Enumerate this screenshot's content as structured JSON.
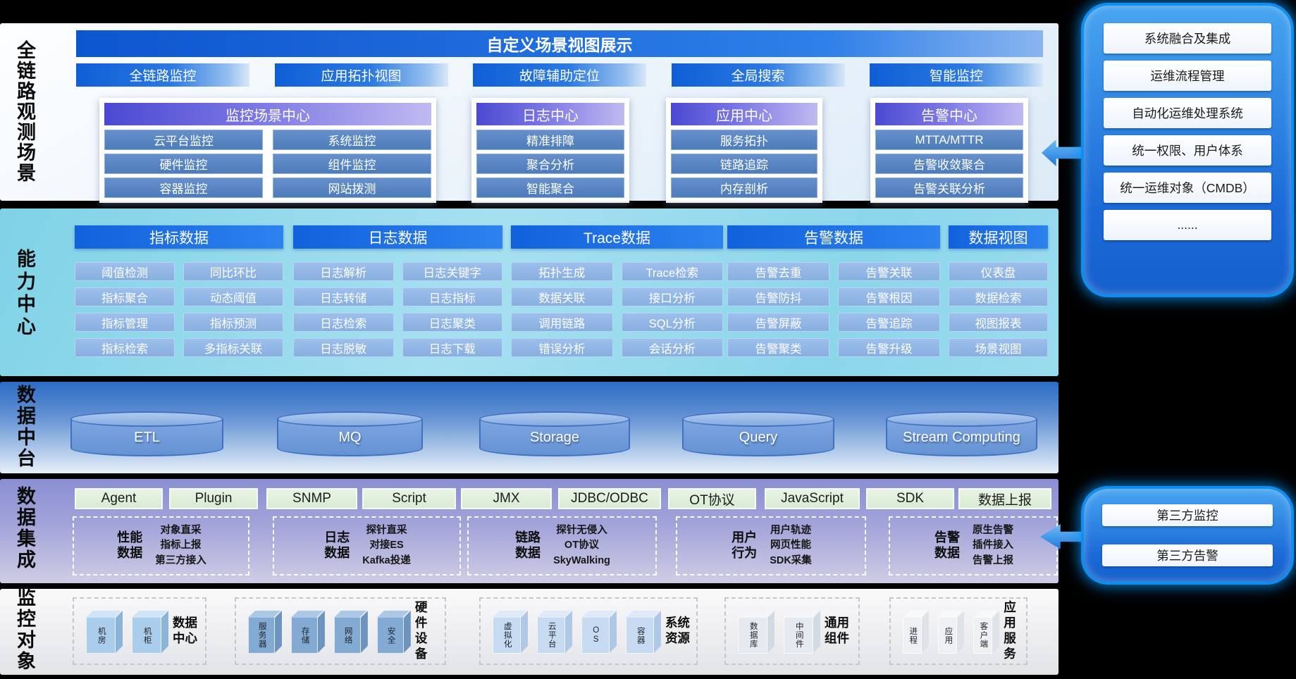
{
  "colors": {
    "canvas_bg": "#000000",
    "banner_blue": "#0d5ccf",
    "tab_blue": "#1668e0",
    "group_header_purple": "#5a55dd",
    "scene_item_blue": "#5582bf",
    "capability_header_blue": "#1a6ce2",
    "capability_item_blue": "#93b7e6",
    "cylinder_blue": "#6d9ad8",
    "chip_green": "#ddeed8",
    "panel_blue": "#2a85e8",
    "arrow_blue": "#2f8fe8"
  },
  "scene_section": {
    "side_label": "全链路观测场景",
    "banner": "自定义场景视图展示",
    "tabs": [
      "全链路监控",
      "应用拓扑视图",
      "故障辅助定位",
      "全局搜索",
      "智能监控"
    ],
    "groups": [
      {
        "title": "监控场景中心",
        "columns": [
          [
            "云平台监控",
            "硬件监控",
            "容器监控"
          ],
          [
            "系统监控",
            "组件监控",
            "网站拨测"
          ]
        ]
      },
      {
        "title": "日志中心",
        "columns": [
          [
            "精准排障",
            "聚合分析",
            "智能聚合"
          ]
        ]
      },
      {
        "title": "应用中心",
        "columns": [
          [
            "服务拓扑",
            "链路追踪",
            "内存剖析"
          ]
        ]
      },
      {
        "title": "告警中心",
        "columns": [
          [
            "MTTA/MTTR",
            "告警收敛聚合",
            "告警关联分析"
          ]
        ]
      }
    ]
  },
  "capability_section": {
    "side_label": "能力中心",
    "groups": [
      {
        "title": "指标数据",
        "columns": [
          [
            "阈值检测",
            "指标聚合",
            "指标管理",
            "指标检索"
          ],
          [
            "同比环比",
            "动态阈值",
            "指标预测",
            "多指标关联"
          ]
        ]
      },
      {
        "title": "日志数据",
        "columns": [
          [
            "日志解析",
            "日志转储",
            "日志检索",
            "日志脱敏"
          ],
          [
            "日志关键字",
            "日志指标",
            "日志聚类",
            "日志下载"
          ]
        ]
      },
      {
        "title": "Trace数据",
        "columns": [
          [
            "拓扑生成",
            "数据关联",
            "调用链路",
            "错误分析"
          ],
          [
            "Trace检索",
            "接口分析",
            "SQL分析",
            "会话分析"
          ]
        ]
      },
      {
        "title": "告警数据",
        "columns": [
          [
            "告警去重",
            "告警防抖",
            "告警屏蔽",
            "告警聚类"
          ],
          [
            "告警关联",
            "告警根因",
            "告警追踪",
            "告警升级"
          ]
        ]
      },
      {
        "title": "数据视图",
        "columns": [
          [
            "仪表盘",
            "数据检索",
            "视图报表",
            "场景视图"
          ]
        ]
      }
    ]
  },
  "platform_section": {
    "side_label": "数据中台",
    "cylinders": [
      "ETL",
      "MQ",
      "Storage",
      "Query",
      "Stream Computing"
    ]
  },
  "integration_section": {
    "side_label": "数据集成",
    "chips": [
      "Agent",
      "Plugin",
      "SNMP",
      "Script",
      "JMX",
      "JDBC/ODBC",
      "OT协议",
      "JavaScript",
      "SDK",
      "数据上报"
    ],
    "collectors": [
      {
        "label": "性能数据",
        "lines": [
          "对象直采",
          "指标上报",
          "第三方接入"
        ]
      },
      {
        "label": "日志数据",
        "lines": [
          "探针直采",
          "对接ES",
          "Kafka投递"
        ]
      },
      {
        "label": "链路数据",
        "lines": [
          "探针无侵入",
          "OT协议",
          "SkyWalking"
        ]
      },
      {
        "label": "用户行为",
        "lines": [
          "用户轨迹",
          "网页性能",
          "SDK采集"
        ]
      },
      {
        "label": "告警数据",
        "lines": [
          "原生告警",
          "插件接入",
          "告警上报"
        ]
      }
    ]
  },
  "objects_section": {
    "side_label": "监控对象",
    "groups": [
      {
        "label": "数据中心",
        "cubes": [
          "机房",
          "机柜"
        ]
      },
      {
        "label": "硬件设备",
        "cubes": [
          "服务器",
          "存储",
          "网络",
          "安全"
        ]
      },
      {
        "label": "系统资源",
        "cubes": [
          "虚拟化",
          "云平台",
          "OS",
          "容器"
        ]
      },
      {
        "label": "通用组件",
        "cubes": [
          "数据库",
          "中间件"
        ]
      },
      {
        "label": "应用服务",
        "cubes": [
          "进程",
          "应用",
          "客户端"
        ]
      }
    ]
  },
  "right_panel_top": {
    "items": [
      "系统融合及集成",
      "运维流程管理",
      "自动化运维处理系统",
      "统一权限、用户体系",
      "统一运维对象（CMDB）",
      "......"
    ]
  },
  "right_panel_bottom": {
    "items": [
      "第三方监控",
      "第三方告警"
    ]
  }
}
